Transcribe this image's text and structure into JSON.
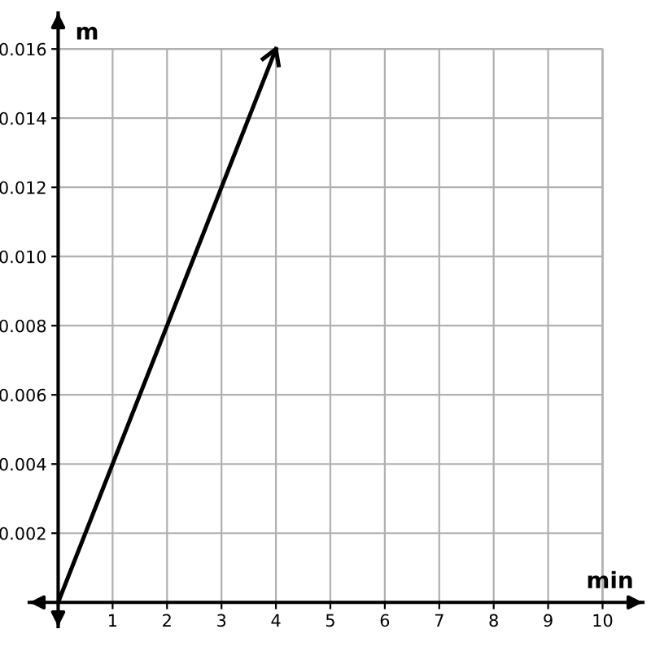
{
  "chart_data": {
    "type": "line",
    "xlabel": "min",
    "ylabel": "m",
    "x": [
      0,
      4
    ],
    "series": [
      {
        "color": "#000000",
        "values": [
          0,
          0.016
        ]
      }
    ],
    "xlim": [
      -0.53,
      10.74
    ],
    "ylim": [
      -0.0007,
      0.01704
    ],
    "xticks": [
      1,
      2,
      3,
      4,
      5,
      6,
      7,
      8,
      9,
      10
    ],
    "yticks": [
      {
        "value": 0.002,
        "label": "0.002"
      },
      {
        "value": 0.004,
        "label": "0.004"
      },
      {
        "value": 0.006,
        "label": "0.006"
      },
      {
        "value": 0.008,
        "label": "0.008"
      },
      {
        "value": 0.01,
        "label": "0.010"
      },
      {
        "value": 0.012,
        "label": "0.012"
      },
      {
        "value": 0.014,
        "label": "0.014"
      },
      {
        "value": 0.016,
        "label": "0.016"
      }
    ],
    "grid": true,
    "marker": "none",
    "line_style": "solid"
  }
}
